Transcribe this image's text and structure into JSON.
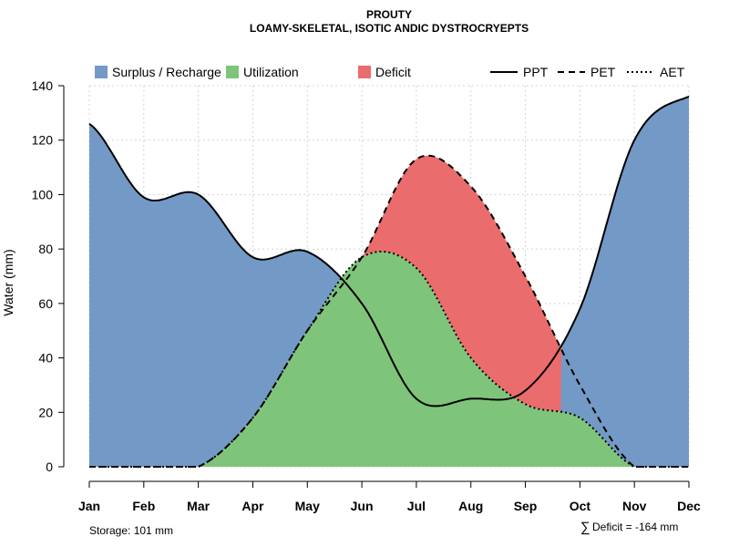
{
  "chart_data": {
    "type": "area",
    "title": "PROUTY",
    "subtitle": "LOAMY-SKELETAL, ISOTIC ANDIC DYSTROCRYEPTS",
    "xlabel": "",
    "ylabel": "Water (mm)",
    "ylim": [
      0,
      140
    ],
    "yticks": [
      0,
      20,
      40,
      60,
      80,
      100,
      120,
      140
    ],
    "categories": [
      "Jan",
      "Feb",
      "Mar",
      "Apr",
      "May",
      "Jun",
      "Jul",
      "Aug",
      "Sep",
      "Oct",
      "Nov",
      "Dec"
    ],
    "grid": true,
    "series": [
      {
        "name": "PPT",
        "style": "solid",
        "values": [
          126,
          99,
          100,
          77,
          79,
          60,
          25,
          25,
          28,
          58,
          120,
          136
        ]
      },
      {
        "name": "PET",
        "style": "dashed",
        "values": [
          0,
          0,
          0,
          18,
          50,
          77,
          113,
          103,
          70,
          30,
          0,
          0
        ]
      },
      {
        "name": "AET",
        "style": "dotted",
        "values": [
          0,
          0,
          0,
          18,
          50,
          77,
          73,
          40,
          23,
          18,
          0,
          0
        ]
      }
    ],
    "fills": [
      {
        "name": "Surplus / Recharge",
        "color": "#7399c6"
      },
      {
        "name": "Utilization",
        "color": "#7fc47b"
      },
      {
        "name": "Deficit",
        "color": "#eb6c6c"
      }
    ],
    "legend": {
      "fills": [
        "Surplus / Recharge",
        "Utilization",
        "Deficit"
      ],
      "lines": [
        "PPT",
        "PET",
        "AET"
      ],
      "placement": "top"
    },
    "footer": {
      "storage": "Storage: 101 mm",
      "deficit_symbol": "∑",
      "deficit": "Deficit = -164 mm"
    }
  }
}
